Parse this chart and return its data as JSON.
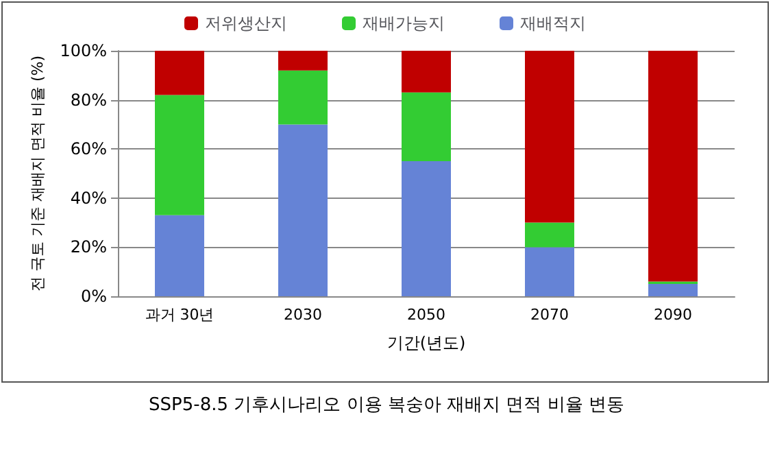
{
  "chart_data": {
    "type": "bar",
    "title": "SSP5-8.5 기후시나리오 이용 복숭아 재배지 면적 비율 변동",
    "xlabel": "기간(년도)",
    "ylabel": "전 국토 기준 재배지 면적 비율 (%)",
    "categories": [
      "과거 30년",
      "2030",
      "2050",
      "2070",
      "2090"
    ],
    "series": [
      {
        "name": "재배적지",
        "color": "#6583d6",
        "values": [
          33,
          70,
          55,
          20,
          5
        ]
      },
      {
        "name": "재배가능지",
        "color": "#33cc33",
        "values": [
          49,
          22,
          28,
          10,
          1
        ]
      },
      {
        "name": "저위생산지",
        "color": "#c00000",
        "values": [
          18,
          8,
          17,
          70,
          94
        ]
      }
    ],
    "stacked": true,
    "ylim": [
      0,
      100
    ],
    "yticks": [
      {
        "value": 0,
        "label": "0%"
      },
      {
        "value": 20,
        "label": "20%"
      },
      {
        "value": 40,
        "label": "40%"
      },
      {
        "value": 60,
        "label": "60%"
      },
      {
        "value": 80,
        "label": "80%"
      },
      {
        "value": 100,
        "label": "100%"
      }
    ],
    "grid": "y",
    "legend": "top"
  }
}
